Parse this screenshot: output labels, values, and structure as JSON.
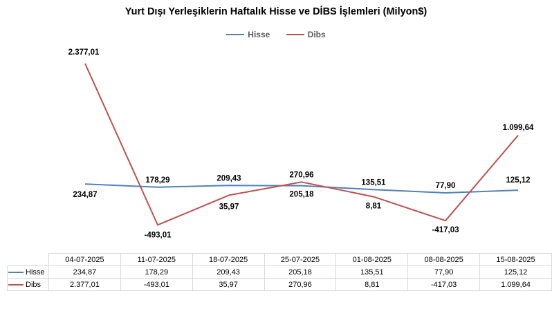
{
  "chart_data": {
    "type": "line",
    "title": "Yurt Dışı Yerleşiklerin Haftalık Hisse ve DİBS İşlemleri (Milyon$)",
    "categories": [
      "04-07-2025",
      "11-07-2025",
      "18-07-2025",
      "25-07-2025",
      "01-08-2025",
      "08-08-2025",
      "15-08-2025"
    ],
    "series": [
      {
        "name": "Hisse",
        "color": "#4f81bd",
        "values": [
          234.87,
          178.29,
          209.43,
          205.18,
          135.51,
          77.9,
          125.12
        ],
        "labels": [
          "234,87",
          "178,29",
          "209,43",
          "205,18",
          "135,51",
          "77,90",
          "125,12"
        ]
      },
      {
        "name": "Dibs",
        "color": "#c0504d",
        "values": [
          2377.01,
          -493.01,
          35.97,
          270.96,
          8.81,
          -417.03,
          1099.64
        ],
        "labels": [
          "2.377,01",
          "-493,01",
          "35,97",
          "270,96",
          "8,81",
          "-417,03",
          "1.099,64"
        ]
      }
    ],
    "ylim": [
      -500,
      2400
    ],
    "grid": false,
    "legend": "top-center",
    "data_table": true
  }
}
